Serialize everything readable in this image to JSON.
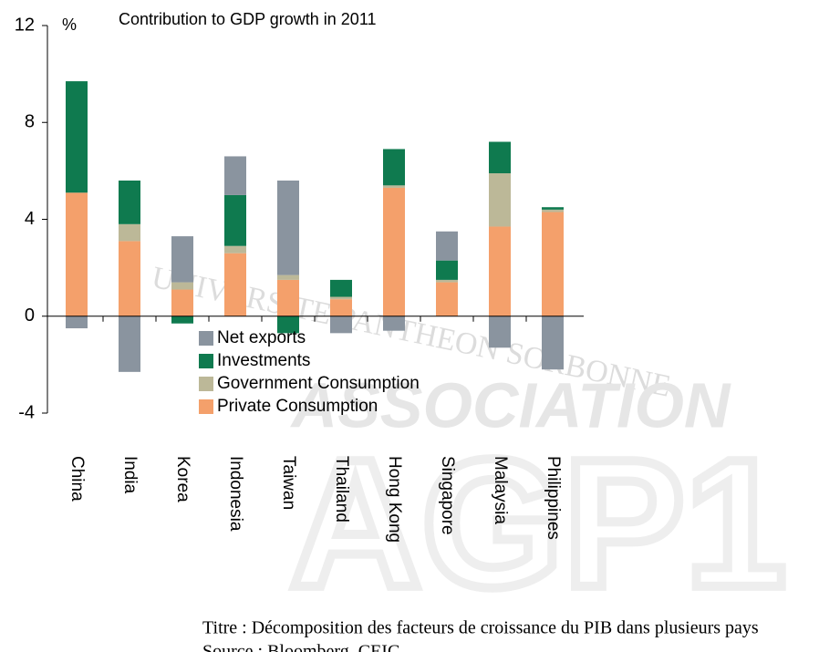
{
  "chart_data": {
    "type": "stacked-bar",
    "title": "Contribution to GDP growth in 2011",
    "y_label": "%",
    "categories": [
      "China",
      "India",
      "Korea",
      "Indonesia",
      "Taiwan",
      "Thailand",
      "Hong Kong",
      "Singapore",
      "Malaysia",
      "Philippines"
    ],
    "series": [
      {
        "name": "Net exports",
        "color": "#8a949f",
        "values": [
          -0.5,
          -2.3,
          1.9,
          1.6,
          3.9,
          -0.7,
          -0.6,
          1.2,
          -1.3,
          -2.2
        ]
      },
      {
        "name": "Investments",
        "color": "#0f7a4f",
        "values": [
          4.6,
          1.8,
          -0.3,
          2.1,
          -0.7,
          0.7,
          1.5,
          0.8,
          1.3,
          0.1
        ]
      },
      {
        "name": "Government Consumption",
        "color": "#bcb898",
        "values": [
          0,
          0.7,
          0.3,
          0.3,
          0.2,
          0.1,
          0.1,
          0.1,
          2.2,
          0.1
        ]
      },
      {
        "name": "Private Consumption",
        "color": "#f4a06b",
        "values": [
          5.1,
          3.1,
          1.1,
          2.6,
          1.5,
          0.7,
          5.3,
          1.4,
          3.7,
          4.3
        ]
      }
    ],
    "ylim": [
      -4,
      12
    ],
    "yticks": [
      12,
      8,
      4,
      0,
      -4
    ]
  },
  "caption": {
    "title": "Titre : Décomposition des facteurs de croissance du PIB dans plusieurs pays",
    "source": "Source : Bloomberg, CEIC"
  },
  "watermark": {
    "arc": "UNIVERSITE PANTHEON SORBONNE",
    "word": "ASSOCIATION",
    "logo": "AGP1"
  }
}
